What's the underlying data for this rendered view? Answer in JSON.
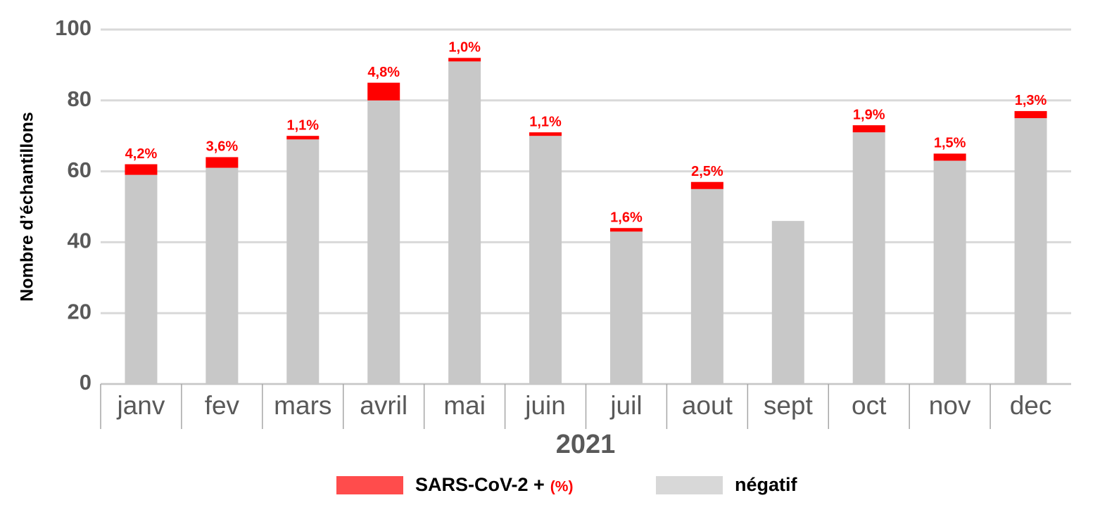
{
  "chart_data": {
    "type": "bar",
    "stacked": true,
    "y_label": "Nombre d’échantillons",
    "x_label": "2021",
    "categories": [
      "janv",
      "fev",
      "mars",
      "avril",
      "mai",
      "juin",
      "juil",
      "aout",
      "sept",
      "oct",
      "nov",
      "dec"
    ],
    "series": [
      {
        "name": "négatif",
        "color": "#c8c8c8",
        "values": [
          59,
          61,
          69,
          80,
          91,
          70,
          43,
          55,
          46,
          71,
          63,
          75
        ]
      },
      {
        "name": "SARS-CoV-2 +",
        "legend_note": "(%)",
        "color": "#ff0000",
        "values": [
          3,
          3,
          1,
          5,
          1,
          1,
          1,
          2,
          0,
          2,
          2,
          2
        ]
      }
    ],
    "rate_labels": {
      "values": [
        4.2,
        3.6,
        1.1,
        4.8,
        1.0,
        1.1,
        1.6,
        2.5,
        null,
        1.9,
        1.5,
        1.3
      ],
      "value_labels": [
        "4,2%",
        "3,6%",
        "1,1%",
        "4,8%",
        "1,0%",
        "1,1%",
        "1,6%",
        "2,5%",
        null,
        "1,9%",
        "1,5%",
        "1,3%"
      ]
    },
    "ylim": [
      0,
      100
    ],
    "yticks": [
      0,
      20,
      40,
      60,
      80,
      100
    ],
    "grid": true
  }
}
